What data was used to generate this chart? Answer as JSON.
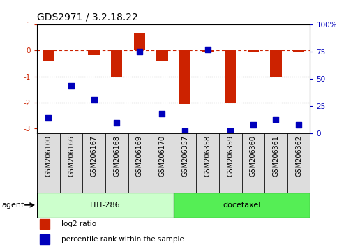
{
  "title": "GDS2971 / 3.2.18.22",
  "samples": [
    "GSM206100",
    "GSM206166",
    "GSM206167",
    "GSM206168",
    "GSM206169",
    "GSM206170",
    "GSM206357",
    "GSM206358",
    "GSM206359",
    "GSM206360",
    "GSM206361",
    "GSM206362"
  ],
  "log2_ratio": [
    -0.42,
    0.04,
    -0.18,
    -1.05,
    0.7,
    -0.38,
    -2.05,
    -0.04,
    -2.0,
    -0.04,
    -1.05,
    -0.04
  ],
  "percentile_rank": [
    14,
    44,
    31,
    10,
    75,
    18,
    2,
    77,
    2,
    8,
    13,
    8
  ],
  "bar_color": "#cc2200",
  "dot_color": "#0000bb",
  "ref_line_color": "#cc2200",
  "dotted_line_color": "#333333",
  "ylim_left": [
    -3.2,
    1.0
  ],
  "ytick_right_vals": [
    100,
    75,
    50,
    25,
    0
  ],
  "group1_label": "HTI-286",
  "group2_label": "docetaxel",
  "group1_color": "#ccffcc",
  "group2_color": "#55ee55",
  "group1_count": 6,
  "group2_count": 6,
  "agent_label": "agent",
  "legend_bar_label": "log2 ratio",
  "legend_dot_label": "percentile rank within the sample",
  "bar_width": 0.5,
  "dot_size": 30,
  "label_fontsize": 7,
  "tick_fontsize": 7.5,
  "title_fontsize": 10,
  "group_fontsize": 8
}
